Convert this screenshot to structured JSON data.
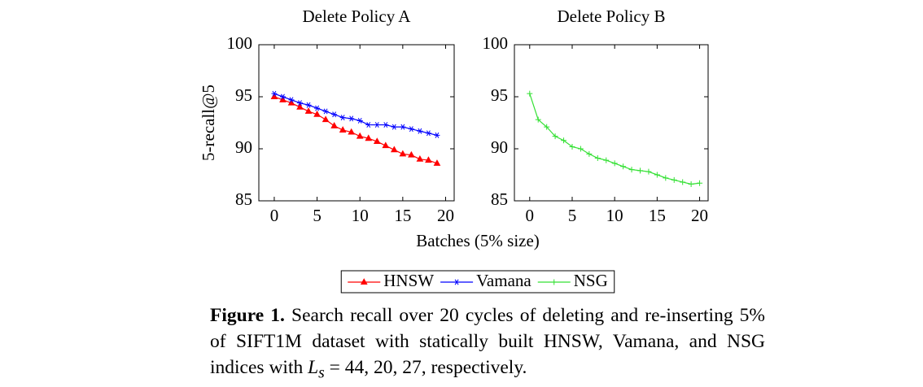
{
  "chart_data": [
    {
      "type": "line",
      "title": "Delete Policy A",
      "ylabel": "5-recall@5",
      "x": [
        0,
        1,
        2,
        3,
        4,
        5,
        6,
        7,
        8,
        9,
        10,
        11,
        12,
        13,
        14,
        15,
        16,
        17,
        18,
        19
      ],
      "series": [
        {
          "name": "HNSW",
          "color": "#ff0000",
          "marker": "triangle",
          "values": [
            95.0,
            94.7,
            94.4,
            94.0,
            93.6,
            93.3,
            92.8,
            92.2,
            91.8,
            91.6,
            91.2,
            91.0,
            90.7,
            90.3,
            89.9,
            89.5,
            89.4,
            89.0,
            88.9,
            88.6
          ]
        },
        {
          "name": "Vamana",
          "color": "#0000ff",
          "marker": "star",
          "values": [
            95.3,
            95.0,
            94.7,
            94.4,
            94.2,
            93.9,
            93.6,
            93.3,
            93.0,
            92.9,
            92.7,
            92.3,
            92.3,
            92.3,
            92.1,
            92.1,
            91.9,
            91.7,
            91.5,
            91.3
          ]
        }
      ],
      "xlim": [
        -1.8,
        21
      ],
      "xticks": [
        0,
        5,
        10,
        15,
        20
      ],
      "ylim": [
        85,
        100
      ],
      "yticks": [
        85,
        90,
        95,
        100
      ],
      "grid": false
    },
    {
      "type": "line",
      "title": "Delete Policy B",
      "x": [
        0,
        1,
        2,
        3,
        4,
        5,
        6,
        7,
        8,
        9,
        10,
        11,
        12,
        13,
        14,
        15,
        16,
        17,
        18,
        19,
        20
      ],
      "series": [
        {
          "name": "NSG",
          "color": "#33e033",
          "marker": "plus",
          "values": [
            95.3,
            92.8,
            92.1,
            91.2,
            90.8,
            90.2,
            90.0,
            89.5,
            89.1,
            88.9,
            88.6,
            88.3,
            88.0,
            87.9,
            87.8,
            87.5,
            87.2,
            87.0,
            86.8,
            86.6,
            86.7
          ]
        }
      ],
      "xlim": [
        -1.8,
        21
      ],
      "xticks": [
        0,
        5,
        10,
        15,
        20
      ],
      "ylim": [
        85,
        100
      ],
      "yticks": [
        85,
        90,
        95,
        100
      ],
      "grid": false
    }
  ],
  "xlabel": "Batches (5% size)",
  "legend": "bottom",
  "caption": {
    "label": "Figure 1.",
    "text_before": "Search recall over 20 cycles of deleting and re-inserting 5% of SIFT1M dataset with statically built HNSW, Vamana, and NSG indices with ",
    "symbol": "L",
    "subscript": "s",
    "text_after": " = 44, 20, 27, respectively."
  }
}
